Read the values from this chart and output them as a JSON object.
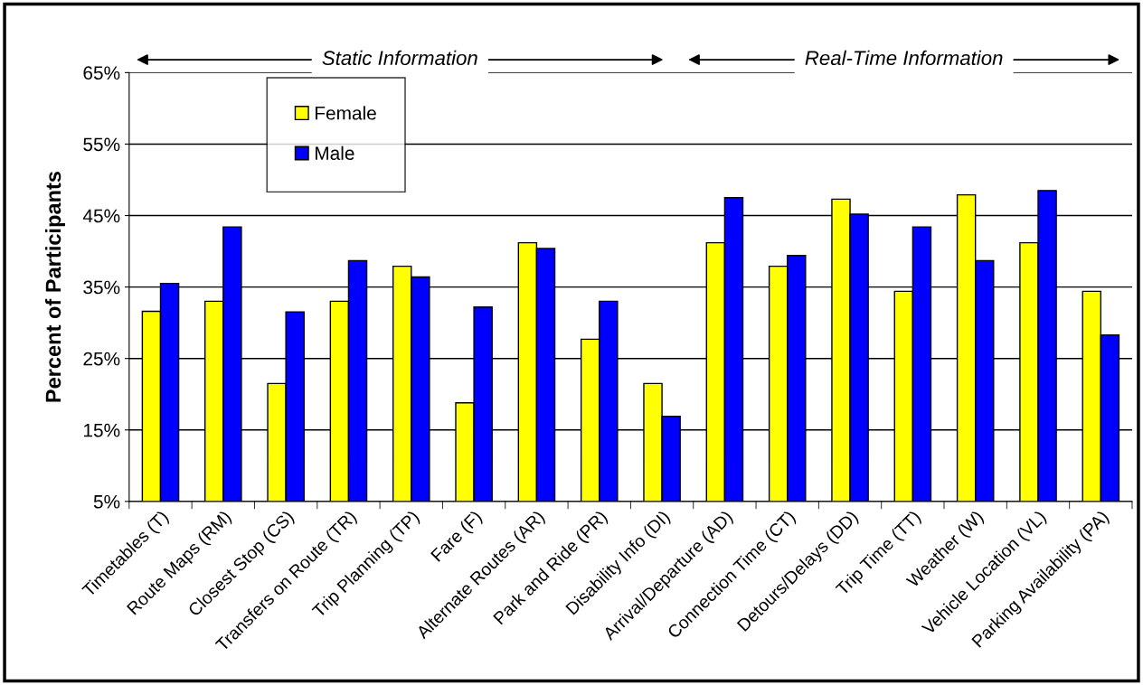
{
  "chart_data": {
    "type": "bar",
    "ylabel": "Percent of Participants",
    "categories": [
      "Timetables (T)",
      "Route Maps (RM)",
      "Closest Stop (CS)",
      "Transfers on Route (TR)",
      "Trip Planning (TP)",
      "Fare (F)",
      "Alternate Routes (AR)",
      "Park and Ride (PR)",
      "Disability Info (DI)",
      "Arrival/Departure (AD)",
      "Connection Time (CT)",
      "Detours/Delays (DD)",
      "Trip Time (TT)",
      "Weather (W)",
      "Vehicle Location (VL)",
      "Parking Availability (PA)"
    ],
    "series": [
      {
        "name": "Female",
        "color": "#ffff00",
        "values": [
          31.6,
          33.0,
          21.5,
          33.0,
          37.9,
          18.8,
          41.2,
          27.7,
          21.5,
          41.2,
          37.9,
          47.3,
          34.4,
          47.9,
          41.2,
          34.4
        ]
      },
      {
        "name": "Male",
        "color": "#0000ff",
        "values": [
          35.5,
          43.4,
          31.5,
          38.7,
          36.4,
          32.2,
          40.4,
          33.0,
          16.9,
          47.5,
          39.4,
          45.2,
          43.4,
          38.7,
          48.5,
          28.3
        ]
      }
    ],
    "ylim": [
      5,
      65
    ],
    "yticks": [
      {
        "value": 5,
        "label": "5%"
      },
      {
        "value": 15,
        "label": "15%"
      },
      {
        "value": 25,
        "label": "25%"
      },
      {
        "value": 35,
        "label": "35%"
      },
      {
        "value": 45,
        "label": "45%"
      },
      {
        "value": 55,
        "label": "55%"
      },
      {
        "value": 65,
        "label": "65%"
      }
    ],
    "grid": "y",
    "legend": "top left",
    "annotations": [
      "Static Information",
      "Real-Time Information"
    ]
  }
}
